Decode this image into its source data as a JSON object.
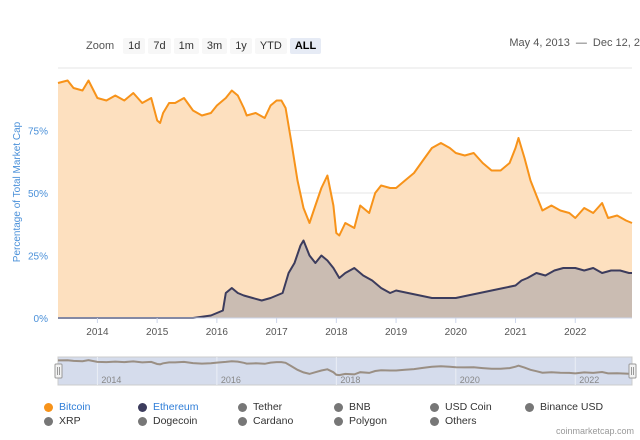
{
  "zoom": {
    "label": "Zoom",
    "buttons": [
      "1d",
      "7d",
      "1m",
      "3m",
      "1y",
      "YTD",
      "ALL"
    ],
    "active": "ALL"
  },
  "date_range": {
    "from": "May 4, 2013",
    "separator": "—",
    "to": "Dec 12, 2"
  },
  "colors": {
    "bitcoin": "#f7931a",
    "ethereum": "#3c3c5d",
    "disabled": "#777777",
    "enabled_text": "#2f7ed8",
    "bitcoin_fill": "#fde0bf",
    "ethereum_fill": "#c4b8b0"
  },
  "chart_data": {
    "type": "area",
    "title": "",
    "xlabel": "",
    "ylabel": "Percentage of Total Market Cap",
    "xlim": [
      2013.34,
      2022.95
    ],
    "ylim": [
      0,
      100
    ],
    "y_ticks": [
      "0%",
      "25%",
      "50%",
      "75%"
    ],
    "x_ticks": [
      "2014",
      "2015",
      "2016",
      "2017",
      "2018",
      "2019",
      "2020",
      "2021",
      "2022"
    ],
    "grid": true,
    "series": [
      {
        "name": "Bitcoin",
        "color": "#f7931a",
        "x": [
          2013.34,
          2013.5,
          2013.6,
          2013.75,
          2013.85,
          2014.0,
          2014.15,
          2014.3,
          2014.45,
          2014.6,
          2014.75,
          2014.9,
          2015.0,
          2015.05,
          2015.1,
          2015.2,
          2015.3,
          2015.45,
          2015.6,
          2015.75,
          2015.9,
          2016.0,
          2016.15,
          2016.25,
          2016.35,
          2016.45,
          2016.5,
          2016.65,
          2016.8,
          2016.9,
          2017.0,
          2017.08,
          2017.15,
          2017.25,
          2017.35,
          2017.45,
          2017.55,
          2017.65,
          2017.75,
          2017.85,
          2017.95,
          2018.0,
          2018.05,
          2018.15,
          2018.3,
          2018.4,
          2018.55,
          2018.65,
          2018.75,
          2018.9,
          2019.0,
          2019.15,
          2019.3,
          2019.45,
          2019.6,
          2019.75,
          2019.9,
          2020.0,
          2020.15,
          2020.3,
          2020.45,
          2020.6,
          2020.75,
          2020.9,
          2021.0,
          2021.05,
          2021.15,
          2021.25,
          2021.35,
          2021.45,
          2021.6,
          2021.75,
          2021.9,
          2022.0,
          2022.15,
          2022.3,
          2022.45,
          2022.55,
          2022.7,
          2022.85,
          2022.95
        ],
        "values": [
          94,
          95,
          92,
          91,
          95,
          88,
          87,
          89,
          87,
          90,
          86,
          88,
          79,
          78,
          82,
          86,
          86,
          88,
          83,
          81,
          82,
          85,
          88,
          91,
          89,
          84,
          81,
          82,
          80,
          85,
          87,
          87,
          84,
          70,
          55,
          44,
          38,
          45,
          52,
          57,
          45,
          34,
          33,
          38,
          36,
          45,
          42,
          50,
          53,
          52,
          52,
          55,
          58,
          63,
          68,
          70,
          68,
          66,
          65,
          66,
          62,
          59,
          59,
          62,
          68,
          72,
          64,
          55,
          49,
          43,
          45,
          43,
          42,
          40,
          44,
          42,
          46,
          40,
          41,
          39,
          38
        ]
      },
      {
        "name": "Ethereum",
        "color": "#3c3c5d",
        "x": [
          2013.34,
          2015.6,
          2015.9,
          2016.1,
          2016.15,
          2016.25,
          2016.35,
          2016.45,
          2016.6,
          2016.75,
          2016.9,
          2017.0,
          2017.1,
          2017.2,
          2017.3,
          2017.4,
          2017.45,
          2017.55,
          2017.65,
          2017.75,
          2017.85,
          2017.95,
          2018.05,
          2018.15,
          2018.3,
          2018.45,
          2018.6,
          2018.75,
          2018.9,
          2019.0,
          2019.2,
          2019.4,
          2019.6,
          2019.8,
          2020.0,
          2020.2,
          2020.4,
          2020.6,
          2020.8,
          2021.0,
          2021.1,
          2021.2,
          2021.35,
          2021.5,
          2021.65,
          2021.8,
          2022.0,
          2022.15,
          2022.3,
          2022.45,
          2022.6,
          2022.75,
          2022.9,
          2022.95
        ],
        "values": [
          0,
          0,
          1,
          3,
          10,
          12,
          10,
          9,
          8,
          7,
          8,
          9,
          10,
          18,
          22,
          29,
          31,
          25,
          22,
          25,
          23,
          20,
          16,
          18,
          20,
          17,
          15,
          12,
          10,
          11,
          10,
          9,
          8,
          8,
          8,
          9,
          10,
          11,
          12,
          13,
          15,
          16,
          18,
          17,
          19,
          20,
          20,
          19,
          20,
          18,
          19,
          19,
          18,
          18
        ]
      }
    ],
    "navigator": {
      "x_ticks": [
        "2014",
        "2016",
        "2018",
        "2020",
        "2022"
      ]
    }
  },
  "legend": [
    {
      "label": "Bitcoin",
      "color": "#f7931a",
      "enabled": true
    },
    {
      "label": "Ethereum",
      "color": "#3c3c5d",
      "enabled": true
    },
    {
      "label": "Tether",
      "color": "#777777",
      "enabled": false
    },
    {
      "label": "BNB",
      "color": "#777777",
      "enabled": false
    },
    {
      "label": "USD Coin",
      "color": "#777777",
      "enabled": false
    },
    {
      "label": "Binance USD",
      "color": "#777777",
      "enabled": false
    },
    {
      "label": "XRP",
      "color": "#777777",
      "enabled": false
    },
    {
      "label": "Dogecoin",
      "color": "#777777",
      "enabled": false
    },
    {
      "label": "Cardano",
      "color": "#777777",
      "enabled": false
    },
    {
      "label": "Polygon",
      "color": "#777777",
      "enabled": false
    },
    {
      "label": "Others",
      "color": "#777777",
      "enabled": false
    }
  ],
  "watermark": "coinmarketcap.com"
}
